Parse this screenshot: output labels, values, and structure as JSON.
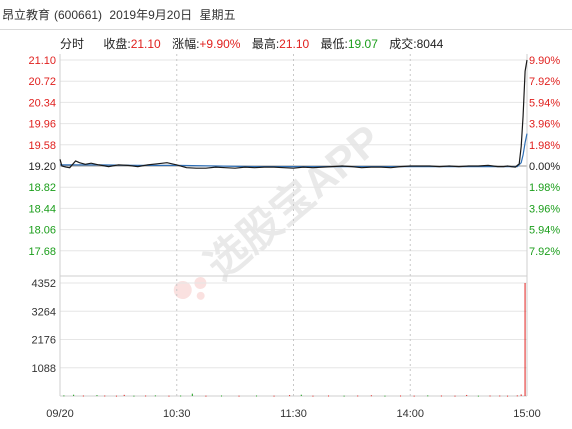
{
  "header": {
    "name": "昂立教育",
    "code": "(600661)",
    "date": "2019年9月20日",
    "weekday": "星期五"
  },
  "info": {
    "tab": "分时",
    "close_label": "收盘:",
    "close_value": "21.10",
    "change_label": "涨幅:",
    "change_value": "+9.90%",
    "high_label": "最高:",
    "high_value": "21.10",
    "low_label": "最低:",
    "low_value": "19.07",
    "volume_label": "成交:",
    "volume_value": "8044"
  },
  "watermark": "选股宝APP",
  "colors": {
    "up": "#e0201e",
    "down": "#1b9e1b",
    "price_line": "#1a1a1a",
    "avg_line": "#2f6fb5",
    "grid": "#d4d4d4",
    "dotted": "#b9b9b9"
  },
  "chart_data": {
    "type": "line",
    "title": "",
    "prev_close": 19.2,
    "price_axis": {
      "ylim": [
        17.3,
        21.1
      ],
      "tick_values": [
        21.1,
        20.72,
        20.34,
        19.96,
        19.58,
        19.2,
        18.82,
        18.44,
        18.06,
        17.68
      ],
      "tick_labels": [
        "21.10",
        "20.72",
        "20.34",
        "19.96",
        "19.58",
        "19.20",
        "18.82",
        "18.44",
        "18.06",
        "17.68"
      ],
      "pct_labels": [
        "9.90%",
        "7.92%",
        "5.94%",
        "3.96%",
        "1.98%",
        "0.00%",
        "1.98%",
        "3.96%",
        "5.94%",
        "7.92%"
      ]
    },
    "volume_axis": {
      "ylim": [
        0,
        4352
      ],
      "tick_values": [
        4352,
        3264,
        2176,
        1088
      ],
      "tick_labels": [
        "4352",
        "3264",
        "2176",
        "1088"
      ]
    },
    "x_ticks": [
      "09/20",
      "10:30",
      "11:30",
      "14:00",
      "15:00"
    ],
    "x_tick_minutes": [
      0,
      60,
      120,
      180,
      240
    ],
    "series": [
      {
        "key": "price",
        "x": [
          0,
          1,
          3,
          5,
          8,
          10,
          13,
          16,
          20,
          25,
          30,
          35,
          40,
          45,
          50,
          55,
          60,
          65,
          70,
          75,
          80,
          85,
          90,
          95,
          100,
          105,
          110,
          115,
          120,
          125,
          130,
          135,
          140,
          145,
          150,
          155,
          160,
          165,
          170,
          175,
          180,
          185,
          190,
          195,
          200,
          205,
          210,
          215,
          220,
          225,
          228,
          230,
          232,
          234,
          236,
          237,
          238,
          239,
          240
        ],
        "values": [
          19.32,
          19.2,
          19.18,
          19.17,
          19.29,
          19.26,
          19.23,
          19.25,
          19.22,
          19.19,
          19.22,
          19.21,
          19.19,
          19.22,
          19.24,
          19.26,
          19.22,
          19.17,
          19.16,
          19.16,
          19.18,
          19.17,
          19.16,
          19.18,
          19.17,
          19.18,
          19.18,
          19.17,
          19.16,
          19.18,
          19.17,
          19.18,
          19.19,
          19.2,
          19.19,
          19.17,
          19.18,
          19.18,
          19.17,
          19.19,
          19.2,
          19.2,
          19.2,
          19.19,
          19.2,
          19.19,
          19.2,
          19.2,
          19.21,
          19.19,
          19.19,
          19.2,
          19.19,
          19.18,
          19.24,
          19.55,
          20.1,
          20.9,
          21.1
        ]
      },
      {
        "key": "avg",
        "x": [
          0,
          20,
          40,
          60,
          80,
          100,
          120,
          140,
          160,
          180,
          200,
          220,
          235,
          237,
          238,
          239,
          240
        ],
        "values": [
          19.22,
          19.22,
          19.21,
          19.21,
          19.2,
          19.19,
          19.19,
          19.19,
          19.19,
          19.19,
          19.19,
          19.19,
          19.19,
          19.26,
          19.4,
          19.62,
          19.78
        ]
      }
    ],
    "volume_bars": [
      {
        "minute": 2,
        "value": 25,
        "dir": "down"
      },
      {
        "minute": 7,
        "value": 50,
        "dir": "down"
      },
      {
        "minute": 12,
        "value": 20,
        "dir": "up"
      },
      {
        "minute": 19,
        "value": 35,
        "dir": "down"
      },
      {
        "minute": 23,
        "value": 20,
        "dir": "up"
      },
      {
        "minute": 29,
        "value": 15,
        "dir": "up"
      },
      {
        "minute": 33,
        "value": 45,
        "dir": "up"
      },
      {
        "minute": 38,
        "value": 15,
        "dir": "down"
      },
      {
        "minute": 44,
        "value": 20,
        "dir": "up"
      },
      {
        "minute": 49,
        "value": 25,
        "dir": "down"
      },
      {
        "minute": 56,
        "value": 15,
        "dir": "up"
      },
      {
        "minute": 62,
        "value": 20,
        "dir": "down"
      },
      {
        "minute": 68,
        "value": 90,
        "dir": "down"
      },
      {
        "minute": 75,
        "value": 15,
        "dir": "up"
      },
      {
        "minute": 83,
        "value": 20,
        "dir": "down"
      },
      {
        "minute": 92,
        "value": 15,
        "dir": "up"
      },
      {
        "minute": 101,
        "value": 20,
        "dir": "down"
      },
      {
        "minute": 110,
        "value": 15,
        "dir": "up"
      },
      {
        "minute": 118,
        "value": 35,
        "dir": "up"
      },
      {
        "minute": 124,
        "value": 50,
        "dir": "down"
      },
      {
        "minute": 130,
        "value": 15,
        "dir": "up"
      },
      {
        "minute": 138,
        "value": 20,
        "dir": "up"
      },
      {
        "minute": 146,
        "value": 15,
        "dir": "down"
      },
      {
        "minute": 153,
        "value": 20,
        "dir": "up"
      },
      {
        "minute": 160,
        "value": 30,
        "dir": "up"
      },
      {
        "minute": 167,
        "value": 15,
        "dir": "down"
      },
      {
        "minute": 175,
        "value": 20,
        "dir": "up"
      },
      {
        "minute": 182,
        "value": 15,
        "dir": "up"
      },
      {
        "minute": 189,
        "value": 25,
        "dir": "down"
      },
      {
        "minute": 196,
        "value": 20,
        "dir": "up"
      },
      {
        "minute": 203,
        "value": 15,
        "dir": "up"
      },
      {
        "minute": 209,
        "value": 40,
        "dir": "up"
      },
      {
        "minute": 215,
        "value": 15,
        "dir": "down"
      },
      {
        "minute": 221,
        "value": 20,
        "dir": "up"
      },
      {
        "minute": 226,
        "value": 20,
        "dir": "up"
      },
      {
        "minute": 230,
        "value": 15,
        "dir": "up"
      },
      {
        "minute": 235,
        "value": 25,
        "dir": "up"
      },
      {
        "minute": 237,
        "value": 60,
        "dir": "up"
      },
      {
        "minute": 239,
        "value": 4352,
        "dir": "up"
      }
    ]
  }
}
